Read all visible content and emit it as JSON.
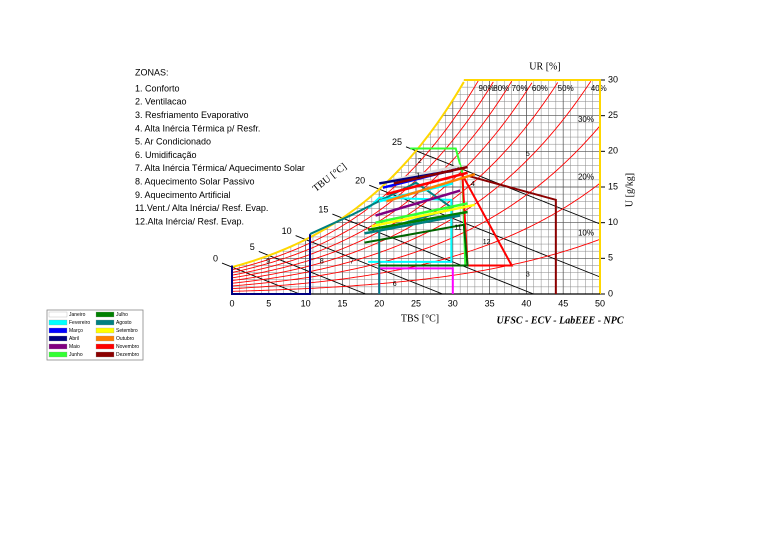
{
  "chart_data": {
    "type": "psychrometric",
    "zones_title": "ZONAS:",
    "zones": [
      {
        "label": "1. Conforto",
        "number": "1",
        "at": [
          25.3,
          16.6
        ]
      },
      {
        "label": "2. Ventilacao",
        "number": "2",
        "at": [
          25.5,
          18.6
        ]
      },
      {
        "label": "3. Resfriamento Evaporativo",
        "number": "3",
        "at": [
          40.2,
          2.7
        ]
      },
      {
        "label": "4. Alta Inércia Térmica p/  Resfr.",
        "number": "4",
        "at": [
          32.7,
          15.4
        ]
      },
      {
        "label": "5. Ar Condicionado",
        "number": "5",
        "at": [
          40.2,
          19.6
        ]
      },
      {
        "label": "6. Umidificação",
        "number": "6",
        "at": [
          22.1,
          1.4
        ]
      },
      {
        "label": "7. Alta Inércia Térmica/ Aquecimento Solar",
        "number": "7",
        "at": [
          16.3,
          4.5
        ]
      },
      {
        "label": "8. Aquecimento Solar Passivo",
        "number": "8",
        "at": [
          12.2,
          4.5
        ]
      },
      {
        "label": "9. Aquecimento Artificial",
        "number": "9",
        "at": [
          4.9,
          4.5
        ]
      },
      {
        "label": "11.Vent./ Alta Inércia/ Resf. Evap.",
        "number": "11",
        "at": [
          30.7,
          9.3
        ]
      },
      {
        "label": "12.Alta Inércia/ Resf. Evap.",
        "number": "12",
        "at": [
          34.6,
          7.3
        ]
      }
    ],
    "zone_outlines": [
      {
        "color": "#00ffff",
        "points": [
          [
            18.5,
            4.5
          ],
          [
            29.8,
            4.5
          ],
          [
            29.8,
            13.2
          ],
          [
            20,
            13.5
          ],
          [
            18.5,
            12
          ]
        ]
      },
      {
        "color": "#33ff33",
        "points": [
          [
            24.2,
            20.4
          ],
          [
            30.4,
            20.4
          ],
          [
            31.3,
            17
          ],
          [
            31.7,
            4
          ],
          [
            29,
            4
          ]
        ]
      },
      {
        "color": "#ff0000",
        "points": [
          [
            31.3,
            16.7
          ],
          [
            38,
            4
          ],
          [
            32,
            4
          ],
          [
            31.3,
            16.7
          ]
        ]
      },
      {
        "color": "#8b0000",
        "points": [
          [
            32.3,
            16.5
          ],
          [
            44,
            13.2
          ],
          [
            44,
            0
          ]
        ]
      },
      {
        "color": "#ff00ff",
        "points": [
          [
            20,
            0
          ],
          [
            20,
            3.6
          ],
          [
            30,
            3.6
          ],
          [
            30,
            0
          ]
        ]
      },
      {
        "color": "#000080",
        "points": [
          [
            0,
            4
          ],
          [
            0,
            0
          ],
          [
            10.6,
            0
          ],
          [
            10.6,
            8.4
          ]
        ]
      },
      {
        "color": "#008080",
        "points": [
          [
            10.6,
            8.4
          ],
          [
            16.3,
            11.1
          ],
          [
            25,
            15.6
          ],
          [
            30,
            12
          ],
          [
            20,
            8.9
          ],
          [
            20,
            0
          ]
        ]
      },
      {
        "color": "#006400",
        "points": [
          [
            18,
            7.2
          ],
          [
            31.5,
            9.7
          ],
          [
            32,
            4
          ],
          [
            20,
            4
          ]
        ]
      }
    ],
    "months": [
      {
        "name": "Janeiro",
        "color": "#ffffff",
        "points": [
          [
            22,
            16
          ],
          [
            31,
            18
          ]
        ]
      },
      {
        "name": "Fevereiro",
        "color": "#00ffff",
        "points": [
          [
            20,
            13
          ],
          [
            30,
            15.5
          ]
        ]
      },
      {
        "name": "Março",
        "color": "#0000ff",
        "points": [
          [
            20.5,
            14.9
          ],
          [
            30.5,
            17.5
          ]
        ]
      },
      {
        "name": "Abril",
        "color": "#000080",
        "points": [
          [
            20,
            15.5
          ],
          [
            30,
            17.3
          ]
        ]
      },
      {
        "name": "Maio",
        "color": "#800080",
        "points": [
          [
            19.5,
            11
          ],
          [
            31,
            14.5
          ]
        ]
      },
      {
        "name": "Junho",
        "color": "#33ff33",
        "points": [
          [
            19.5,
            10
          ],
          [
            32,
            12.7
          ]
        ]
      },
      {
        "name": "Julho",
        "color": "#008000",
        "points": [
          [
            18.5,
            9
          ],
          [
            32,
            11.5
          ]
        ]
      },
      {
        "name": "Agosto",
        "color": "#008080",
        "points": [
          [
            18,
            8.5
          ],
          [
            31,
            11
          ]
        ]
      },
      {
        "name": "Setembro",
        "color": "#ffff00",
        "points": [
          [
            19,
            9.5
          ],
          [
            33,
            12.5
          ]
        ]
      },
      {
        "name": "Outubro",
        "color": "#ff8000",
        "points": [
          [
            21,
            13
          ],
          [
            33,
            16.8
          ]
        ]
      },
      {
        "name": "Novembro",
        "color": "#ff0000",
        "points": [
          [
            21,
            14
          ],
          [
            32,
            17
          ]
        ]
      },
      {
        "name": "Dezembro",
        "color": "#8b0000",
        "points": [
          [
            22,
            15.5
          ],
          [
            32,
            17.8
          ]
        ]
      }
    ],
    "xlabel": "TBS [°C]",
    "ylabel": "U [g/kg]",
    "rh_label": "UR [%]",
    "wb_label": "TBU [°C]",
    "xlim": [
      0,
      50
    ],
    "xticks": [
      0,
      5,
      10,
      15,
      20,
      25,
      30,
      35,
      40,
      45,
      50
    ],
    "ylim": [
      0,
      30
    ],
    "yticks": [
      0,
      5,
      10,
      15,
      20,
      25,
      30
    ],
    "rh_curves": [
      {
        "value": 10,
        "label": "10%"
      },
      {
        "value": 20,
        "label": "20%"
      },
      {
        "value": 30,
        "label": "30%"
      },
      {
        "value": 40,
        "label": "40%"
      },
      {
        "value": 50,
        "label": "50%"
      },
      {
        "value": 60,
        "label": "60%"
      },
      {
        "value": 70,
        "label": "70%"
      },
      {
        "value": 80,
        "label": "80%"
      },
      {
        "value": 90,
        "label": "90%"
      }
    ],
    "wb_lines": [
      0,
      5,
      10,
      15,
      20,
      25
    ],
    "credit": "UFSC - ECV - LabEEE - NPC"
  }
}
